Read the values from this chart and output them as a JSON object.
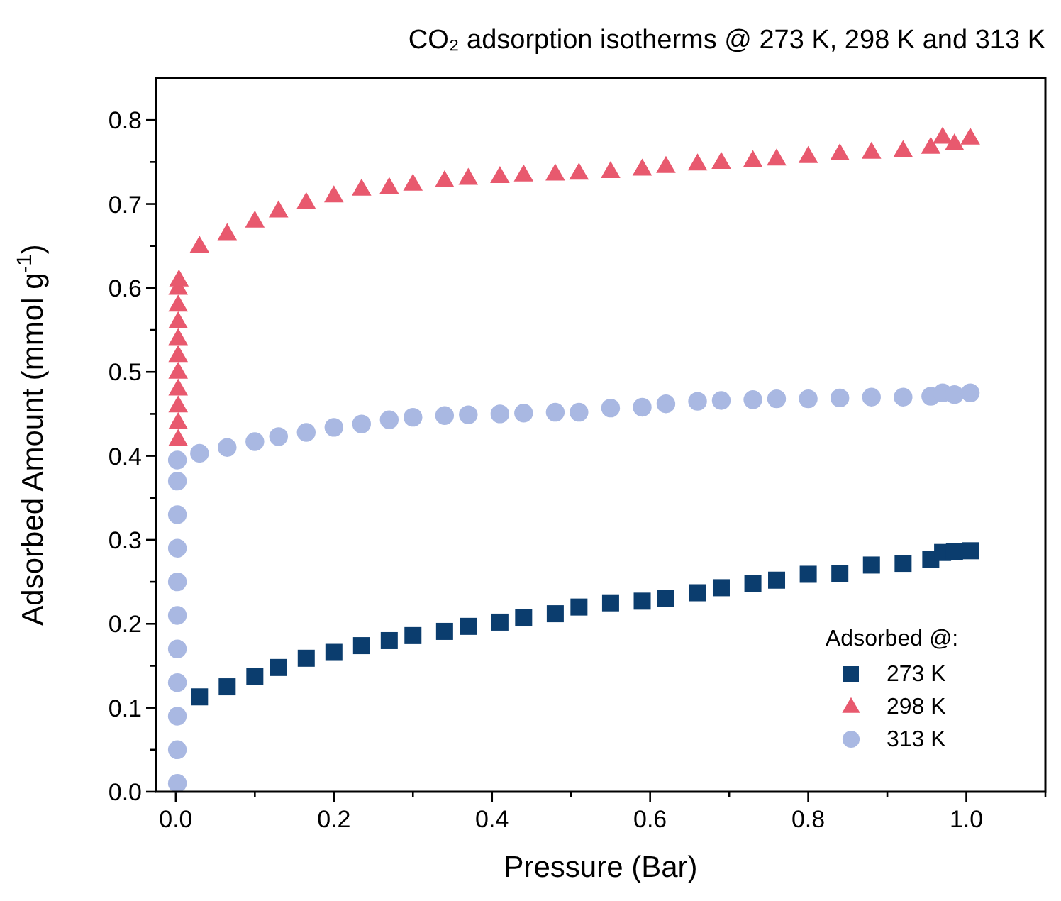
{
  "chart_data": {
    "type": "scatter",
    "title": "CO₂ adsorption isotherms @ 273 K, 298 K and 313 K",
    "xlabel": "Pressure (Bar)",
    "ylabel": "Adsorbed Amount (mmol g$^{-1}$)",
    "legend_title": "Adsorbed @:",
    "xlim": [
      -0.025,
      1.1
    ],
    "ylim": [
      0,
      0.85
    ],
    "xticks": [
      {
        "value": 0,
        "label": "0.0"
      },
      {
        "value": 0.1,
        "label": null
      },
      {
        "value": 0.2,
        "label": "0.2"
      },
      {
        "value": 0.3,
        "label": null
      },
      {
        "value": 0.4,
        "label": "0.4"
      },
      {
        "value": 0.5,
        "label": null
      },
      {
        "value": 0.6,
        "label": "0.6"
      },
      {
        "value": 0.7,
        "label": null
      },
      {
        "value": 0.8,
        "label": "0.8"
      },
      {
        "value": 0.9,
        "label": null
      },
      {
        "value": 1,
        "label": "1.0"
      },
      {
        "value": 1.1,
        "label": null
      }
    ],
    "yticks": [
      {
        "value": 0,
        "label": "0.0"
      },
      {
        "value": 0.05,
        "label": null
      },
      0.1,
      {
        "value": 0.15,
        "label": null
      },
      0.2,
      {
        "value": 0.25,
        "label": null
      },
      0.3,
      {
        "value": 0.35,
        "label": null
      },
      0.4,
      {
        "value": 0.45,
        "label": null
      },
      0.5,
      {
        "value": 0.55,
        "label": null
      },
      0.6,
      {
        "value": 0.65,
        "label": null
      },
      0.7,
      {
        "value": 0.75,
        "label": null
      },
      0.8
    ],
    "grid": false,
    "legend": "bottom right",
    "series": [
      {
        "name": "273 K",
        "color": "#0b3d6e",
        "marker": "square",
        "x": [
          0.03,
          0.065,
          0.1,
          0.13,
          0.165,
          0.2,
          0.235,
          0.27,
          0.3,
          0.34,
          0.37,
          0.41,
          0.44,
          0.48,
          0.51,
          0.55,
          0.59,
          0.62,
          0.66,
          0.69,
          0.73,
          0.76,
          0.8,
          0.84,
          0.88,
          0.92,
          0.955,
          0.97,
          0.985,
          1.005
        ],
        "values": [
          0.113,
          0.125,
          0.137,
          0.148,
          0.159,
          0.166,
          0.174,
          0.18,
          0.186,
          0.191,
          0.197,
          0.202,
          0.207,
          0.212,
          0.22,
          0.225,
          0.227,
          0.23,
          0.237,
          0.243,
          0.248,
          0.252,
          0.259,
          0.26,
          0.27,
          0.272,
          0.277,
          0.285,
          0.286,
          0.287
        ]
      },
      {
        "name": "298 K",
        "color": "#e8596e",
        "marker": "triangle",
        "x": [
          0.003,
          0.003,
          0.003,
          0.003,
          0.003,
          0.003,
          0.003,
          0.003,
          0.003,
          0.003,
          0.004,
          0.03,
          0.065,
          0.1,
          0.13,
          0.165,
          0.2,
          0.235,
          0.27,
          0.3,
          0.34,
          0.37,
          0.41,
          0.44,
          0.48,
          0.51,
          0.55,
          0.59,
          0.62,
          0.66,
          0.69,
          0.73,
          0.76,
          0.8,
          0.84,
          0.88,
          0.92,
          0.955,
          0.97,
          0.985,
          1.005
        ],
        "values": [
          0.42,
          0.44,
          0.46,
          0.48,
          0.5,
          0.52,
          0.54,
          0.56,
          0.58,
          0.6,
          0.61,
          0.65,
          0.665,
          0.68,
          0.692,
          0.702,
          0.71,
          0.718,
          0.72,
          0.724,
          0.728,
          0.731,
          0.733,
          0.735,
          0.736,
          0.737,
          0.739,
          0.742,
          0.745,
          0.748,
          0.75,
          0.752,
          0.754,
          0.757,
          0.76,
          0.762,
          0.764,
          0.768,
          0.78,
          0.772,
          0.779
        ]
      },
      {
        "name": "313 K",
        "color": "#a9b8e2",
        "marker": "circle",
        "x": [
          0.002,
          0.002,
          0.002,
          0.002,
          0.002,
          0.002,
          0.002,
          0.002,
          0.002,
          0.002,
          0.002,
          0.03,
          0.065,
          0.1,
          0.13,
          0.165,
          0.2,
          0.235,
          0.27,
          0.3,
          0.34,
          0.37,
          0.41,
          0.44,
          0.48,
          0.51,
          0.55,
          0.59,
          0.62,
          0.66,
          0.69,
          0.73,
          0.76,
          0.8,
          0.84,
          0.88,
          0.92,
          0.955,
          0.97,
          0.985,
          1.005
        ],
        "values": [
          0.01,
          0.05,
          0.09,
          0.13,
          0.17,
          0.21,
          0.25,
          0.29,
          0.33,
          0.37,
          0.395,
          0.403,
          0.41,
          0.417,
          0.423,
          0.428,
          0.434,
          0.438,
          0.443,
          0.446,
          0.448,
          0.449,
          0.45,
          0.451,
          0.452,
          0.452,
          0.457,
          0.458,
          0.462,
          0.465,
          0.466,
          0.467,
          0.468,
          0.468,
          0.469,
          0.47,
          0.47,
          0.471,
          0.475,
          0.473,
          0.475
        ]
      }
    ]
  }
}
